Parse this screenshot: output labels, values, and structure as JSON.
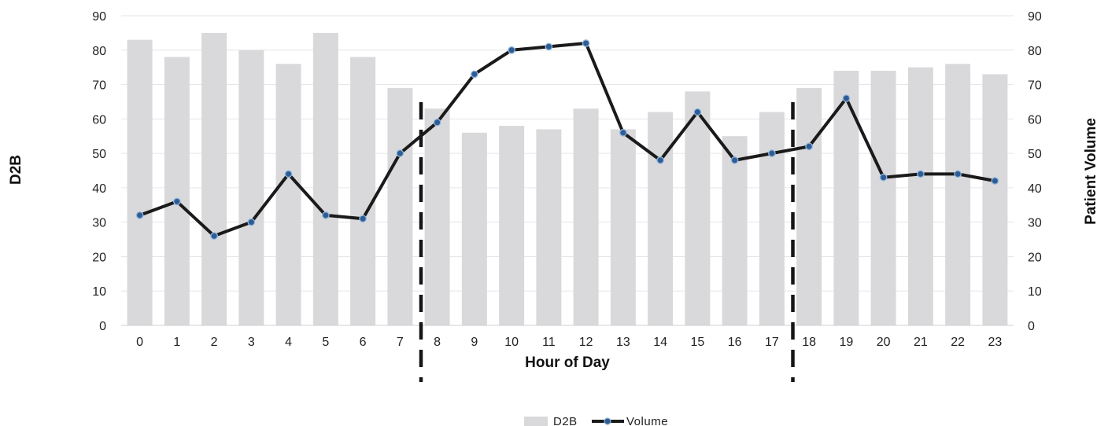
{
  "chart_data": {
    "type": "bar",
    "title": "",
    "xlabel": "Hour of Day",
    "ylabel": "D2B",
    "y2label": "Patient Volume",
    "ylim": [
      0,
      90
    ],
    "y2lim": [
      0,
      90
    ],
    "yticks": [
      0,
      10,
      20,
      30,
      40,
      50,
      60,
      70,
      80,
      90
    ],
    "grid": true,
    "legend_position": "bottom",
    "categories": [
      "0",
      "1",
      "2",
      "3",
      "4",
      "5",
      "6",
      "7",
      "8",
      "9",
      "10",
      "11",
      "12",
      "13",
      "14",
      "15",
      "16",
      "17",
      "18",
      "19",
      "20",
      "21",
      "22",
      "23"
    ],
    "series": [
      {
        "name": "D2B",
        "type": "bar",
        "axis": "left",
        "color": "#d9d9dc",
        "values": [
          83,
          78,
          85,
          80,
          76,
          85,
          78,
          69,
          63,
          56,
          58,
          57,
          63,
          57,
          62,
          68,
          55,
          62,
          69,
          74,
          74,
          75,
          76,
          73
        ]
      },
      {
        "name": "Volume",
        "type": "line",
        "axis": "right",
        "color": "#1a1a1a",
        "marker_color": "#2e5d96",
        "values": [
          32,
          36,
          26,
          30,
          44,
          32,
          31,
          50,
          59,
          73,
          80,
          81,
          82,
          56,
          48,
          62,
          48,
          50,
          52,
          66,
          43,
          44,
          44,
          42
        ]
      }
    ],
    "annotations": [
      {
        "type": "vertical-dashed-line",
        "between": [
          "7",
          "8"
        ]
      },
      {
        "type": "vertical-dashed-line",
        "between": [
          "17",
          "18"
        ]
      }
    ]
  }
}
